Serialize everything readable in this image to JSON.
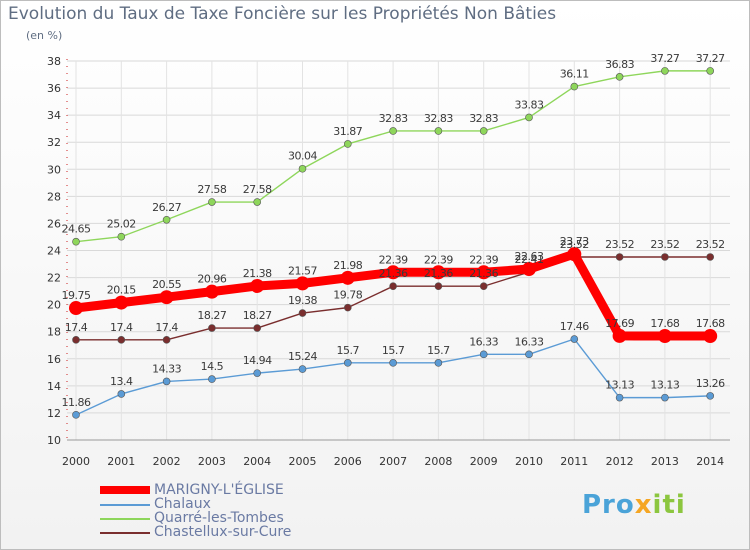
{
  "title": "Evolution du Taux de Taxe Foncière sur les Propriétés Non Bâties",
  "unit": "(en %)",
  "logo": {
    "p1": "Pro",
    "x": "x",
    "p2": "iti"
  },
  "chart_data": {
    "type": "line",
    "x": [
      "2000",
      "2001",
      "2002",
      "2003",
      "2004",
      "2005",
      "2006",
      "2007",
      "2008",
      "2009",
      "2010",
      "2011",
      "2012",
      "2013",
      "2014"
    ],
    "ylim": [
      10,
      38
    ],
    "yticks": [
      "10",
      "12",
      "14",
      "16",
      "18",
      "20",
      "22",
      "24",
      "26",
      "28",
      "30",
      "32",
      "34",
      "36",
      "38"
    ],
    "grid": true,
    "legend_position": "bottom-left",
    "series": [
      {
        "name": "MARIGNY-L'ÉGLISE",
        "color": "#ff0000",
        "values": [
          19.75,
          20.15,
          20.55,
          20.96,
          21.38,
          21.57,
          21.98,
          22.39,
          22.39,
          22.39,
          22.63,
          23.73,
          17.69,
          17.68,
          17.68
        ],
        "labels": [
          "19.75",
          "20.15",
          "20.55",
          "20.96",
          "21.38",
          "21.57",
          "21.98",
          "22.39",
          "22.39",
          "22.39",
          "22.63",
          "23.73",
          "17.69",
          "17.68",
          "17.68"
        ]
      },
      {
        "name": "Chalaux",
        "color": "#5b9bd5",
        "values": [
          11.86,
          13.4,
          14.33,
          14.5,
          14.94,
          15.24,
          15.7,
          15.7,
          15.7,
          16.33,
          16.33,
          17.46,
          13.13,
          13.13,
          13.26
        ],
        "labels": [
          "11.86",
          "13.4",
          "14.33",
          "14.5",
          "14.94",
          "15.24",
          "15.7",
          "15.7",
          "15.7",
          "16.33",
          "16.33",
          "17.46",
          "13.13",
          "13.13",
          "13.26"
        ]
      },
      {
        "name": "Quarré-les-Tombes",
        "color": "#8ed65b",
        "values": [
          24.65,
          25.02,
          26.27,
          27.58,
          27.58,
          30.04,
          31.87,
          32.83,
          32.83,
          32.83,
          33.83,
          36.11,
          36.83,
          37.27,
          37.27
        ],
        "labels": [
          "24.65",
          "25.02",
          "26.27",
          "27.58",
          "27.58",
          "30.04",
          "31.87",
          "32.83",
          "32.83",
          "32.83",
          "33.83",
          "36.11",
          "36.83",
          "37.27",
          "37.27"
        ]
      },
      {
        "name": "Chastellux-sur-Cure",
        "color": "#7a2e2e",
        "values": [
          17.4,
          17.4,
          17.4,
          18.27,
          18.27,
          19.38,
          19.78,
          21.36,
          21.36,
          21.36,
          22.41,
          23.52,
          23.52,
          23.52,
          23.52
        ],
        "labels": [
          "17.4",
          "17.4",
          "17.4",
          "18.27",
          "18.27",
          "19.38",
          "19.78",
          "21.36",
          "21.36",
          "21.36",
          "22.41",
          "23.52",
          "23.52",
          "23.52",
          "23.52"
        ]
      }
    ]
  }
}
